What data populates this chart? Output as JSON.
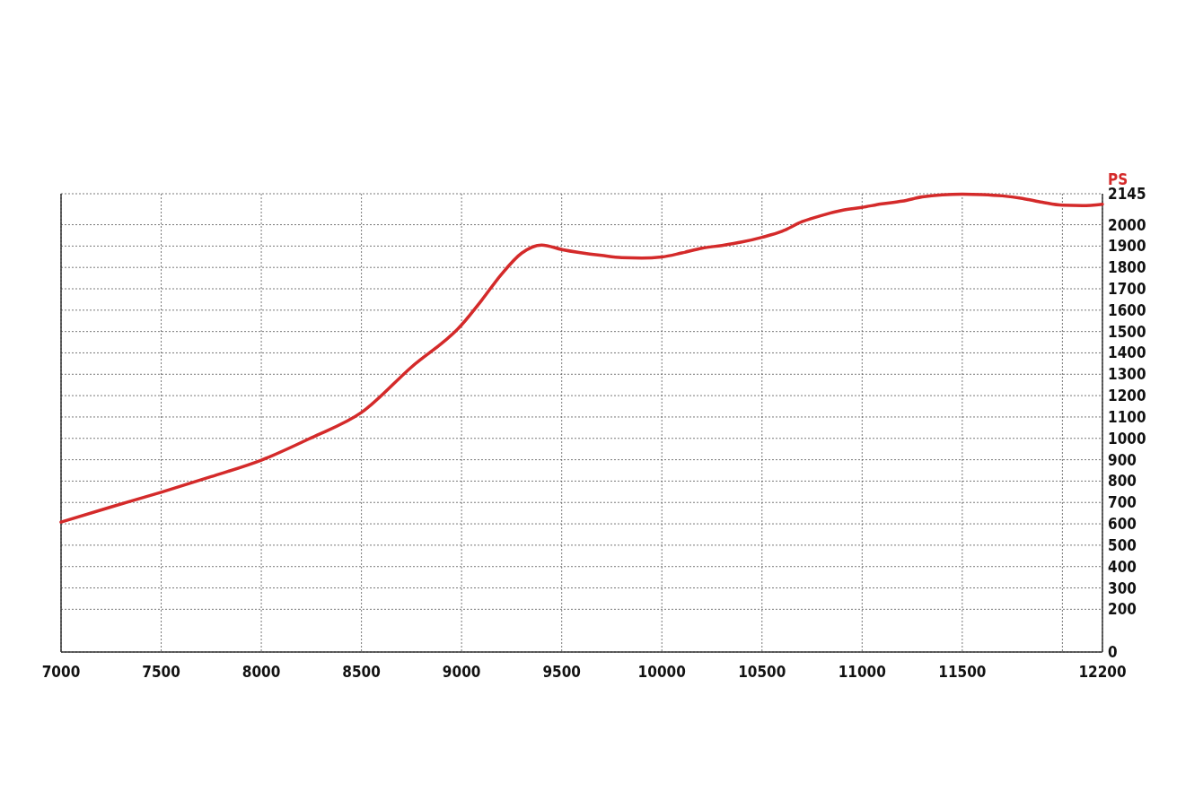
{
  "chart_data": {
    "type": "line",
    "ylabel": "PS",
    "x": [
      7000,
      7250,
      7500,
      7750,
      8000,
      8250,
      8500,
      8750,
      9000,
      9100,
      9200,
      9300,
      9400,
      9500,
      9700,
      9800,
      9900,
      10000,
      10100,
      10200,
      10300,
      10400,
      10500,
      10600,
      10700,
      10800,
      10900,
      11000,
      11100,
      11200,
      11300,
      11400,
      11500,
      11600,
      11700,
      11800,
      11900,
      12000,
      12100,
      12200
    ],
    "series": [
      {
        "color": "#d42a2a",
        "values": [
          608,
          679,
          748,
          821,
          898,
          1003,
          1121,
          1334,
          1531,
          1646,
          1769,
          1867,
          1905,
          1884,
          1856,
          1846,
          1844,
          1849,
          1868,
          1890,
          1903,
          1919,
          1941,
          1969,
          2014,
          2044,
          2067,
          2081,
          2098,
          2110,
          2130,
          2140,
          2143,
          2141,
          2135,
          2123,
          2105,
          2091,
          2089,
          2096
        ]
      }
    ],
    "xlim": [
      7000,
      12200
    ],
    "xticks": [
      7000,
      7500,
      8000,
      8500,
      9000,
      9500,
      10000,
      10500,
      11000,
      11500,
      {
        "value": 12000,
        "label": null
      },
      12200
    ],
    "ylim": [
      0,
      2145
    ],
    "yticks": [
      0,
      200,
      300,
      400,
      500,
      600,
      700,
      800,
      900,
      1000,
      1100,
      1200,
      1300,
      1400,
      1500,
      1600,
      1700,
      1800,
      1900,
      2000,
      2145
    ],
    "grid": true,
    "marker": "none",
    "line_style": "solid"
  }
}
